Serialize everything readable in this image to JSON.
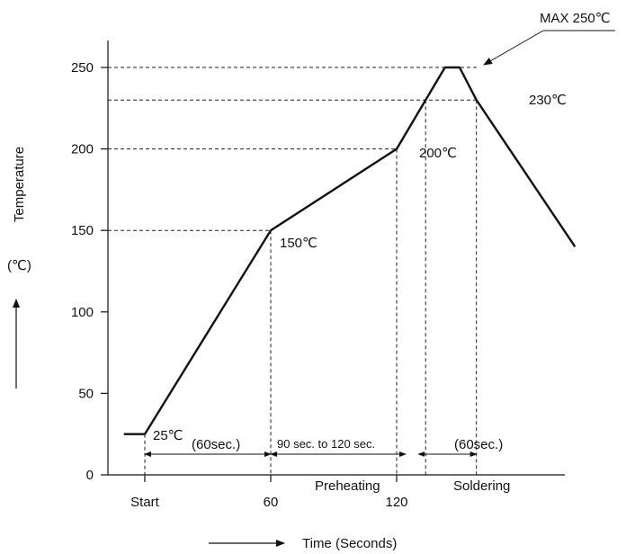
{
  "chart_data": {
    "type": "line",
    "title": "",
    "xlabel": "Time (Seconds)",
    "ylabel": "Temperature",
    "ylabel_unit": "(℃)",
    "yticks": [
      0,
      50,
      100,
      150,
      200,
      250
    ],
    "ylim": [
      0,
      250
    ],
    "x_tick_labels": [
      {
        "x": 0,
        "label": "Start"
      },
      {
        "x": 60,
        "label": "60"
      },
      {
        "x": 120,
        "label": "120"
      }
    ],
    "x_scale_note": "60-second intervals; profile continues beyond 120 s",
    "series": [
      {
        "x": [
          -10,
          0,
          60,
          120,
          143,
          150,
          158,
          205
        ],
        "y": [
          25,
          25,
          150,
          200,
          250,
          250,
          230,
          140
        ]
      }
    ],
    "guide_levels": [
      150,
      200,
      230,
      250
    ],
    "annotations": {
      "max": "MAX 250℃",
      "t230": "230℃",
      "t200": "200℃",
      "t150": "150℃",
      "t25": "25℃"
    },
    "intervals": {
      "first": "(60sec.)",
      "preheat": "90 sec. to 120 sec.",
      "solder": "(60sec.)"
    },
    "phases": {
      "preheating": "Preheating",
      "soldering": "Soldering"
    }
  }
}
